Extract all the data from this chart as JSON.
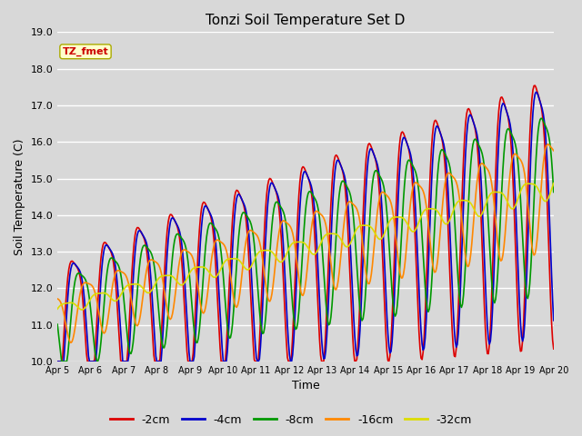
{
  "title": "Tonzi Soil Temperature Set D",
  "xlabel": "Time",
  "ylabel": "Soil Temperature (C)",
  "ylim": [
    10.0,
    19.0
  ],
  "yticks": [
    10.0,
    11.0,
    12.0,
    13.0,
    14.0,
    15.0,
    16.0,
    17.0,
    18.0,
    19.0
  ],
  "bg_color": "#d8d8d8",
  "legend_label": "TZ_fmet",
  "legend_box_facecolor": "#ffffcc",
  "legend_box_edgecolor": "#aaaa00",
  "series_colors": [
    "#dd0000",
    "#0000cc",
    "#009900",
    "#ff8800",
    "#dddd00"
  ],
  "series_labels": [
    "-2cm",
    "-4cm",
    "-8cm",
    "-16cm",
    "-32cm"
  ],
  "x_tick_labels": [
    "Apr 5",
    "Apr 6",
    "Apr 7",
    "Apr 8",
    "Apr 9",
    "Apr 10",
    "Apr 11",
    "Apr 12",
    "Apr 13",
    "Apr 14",
    "Apr 15",
    "Apr 16",
    "Apr 17",
    "Apr 18",
    "Apr 19",
    "Apr 20"
  ],
  "n_points": 480,
  "time_days": 15
}
